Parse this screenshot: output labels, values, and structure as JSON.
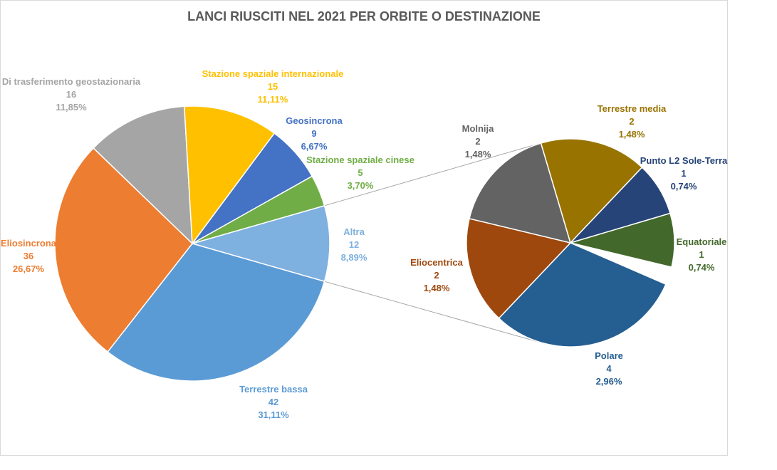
{
  "chart_data": {
    "type": "pie",
    "title": "LANCI RIUSCITI NEL 2021 PER ORBITE O DESTINAZIONE",
    "main_slices": [
      {
        "name": "Terrestre bassa",
        "value": "42",
        "percent": "31,11%",
        "v": 42,
        "color": "#5B9BD5"
      },
      {
        "name": "Eliosincrona",
        "value": "36",
        "percent": "26,67%",
        "v": 36,
        "color": "#ED7D31"
      },
      {
        "name": "Di trasferimento geostazionaria",
        "value": "16",
        "percent": "11,85%",
        "v": 16,
        "color": "#A5A5A5"
      },
      {
        "name": "Stazione spaziale internazionale",
        "value": "15",
        "percent": "11,11%",
        "v": 15,
        "color": "#FFC000"
      },
      {
        "name": "Geosincrona",
        "value": "9",
        "percent": "6,67%",
        "v": 9,
        "color": "#4472C4"
      },
      {
        "name": "Stazione spaziale cinese",
        "value": "5",
        "percent": "3,70%",
        "v": 5,
        "color": "#70AD47"
      },
      {
        "name": "Altra",
        "value": "12",
        "percent": "8,89%",
        "v": 12,
        "color": "#7EB0E0"
      }
    ],
    "secondary_slices": [
      {
        "name": "Eliocentrica",
        "value": "2",
        "percent": "1,48%",
        "v": 2,
        "color": "#9E480E"
      },
      {
        "name": "Molnija",
        "value": "2",
        "percent": "1,48%",
        "v": 2,
        "color": "#636363"
      },
      {
        "name": "Terrestre media",
        "value": "2",
        "percent": "1,48%",
        "v": 2,
        "color": "#997300"
      },
      {
        "name": "Punto L2 Sole-Terra",
        "value": "1",
        "percent": "0,74%",
        "v": 1,
        "color": "#264478"
      },
      {
        "name": "Equatoriale",
        "value": "1",
        "percent": "0,74%",
        "v": 1,
        "color": "#43682B"
      },
      {
        "name": "Polare",
        "value": "4",
        "percent": "2,96%",
        "v": 4,
        "color": "#255E91"
      }
    ]
  }
}
